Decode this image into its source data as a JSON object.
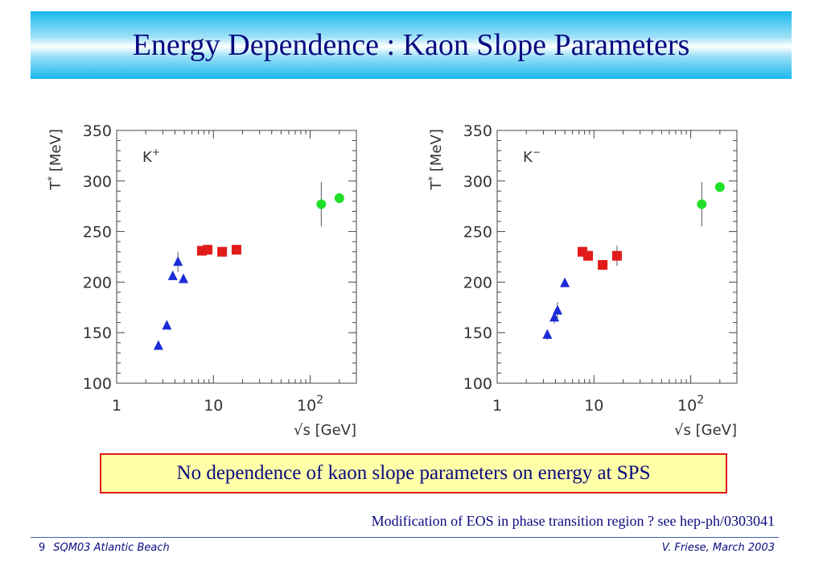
{
  "slide": {
    "title": "Energy Dependence : Kaon Slope Parameters",
    "note": "No dependence of kaon slope parameters on energy at SPS",
    "remark": "Modification of EOS in phase transition region ? see hep-ph/0303041",
    "footer_number": "9",
    "footer_left": "SQM03 Atlantic Beach",
    "footer_right": "V. Friese, March 2003"
  },
  "chart_data": [
    {
      "type": "scatter",
      "panel_label": "K",
      "panel_sup": "+",
      "xlabel": "√s [GeV]",
      "ylabel": "T",
      "ylabel_sup": "*",
      "ylabel_unit": " [MeV]",
      "xscale": "log",
      "xlim": [
        1,
        300
      ],
      "ylim": [
        100,
        350
      ],
      "yticks": [
        100,
        150,
        200,
        250,
        300,
        350
      ],
      "xtick_labels": [
        {
          "x": 1,
          "label": "1"
        },
        {
          "x": 10,
          "label": "10"
        },
        {
          "x": 100,
          "label": "10",
          "sup": "2"
        }
      ],
      "series": [
        {
          "marker": "triangle",
          "color": "#1a2bd6",
          "points": [
            {
              "x": 2.7,
              "y": 137
            },
            {
              "x": 3.3,
              "y": 157
            },
            {
              "x": 3.8,
              "y": 206
            },
            {
              "x": 4.3,
              "y": 220,
              "err": 10
            },
            {
              "x": 4.9,
              "y": 203
            }
          ]
        },
        {
          "marker": "square",
          "color": "#e21b1b",
          "points": [
            {
              "x": 7.6,
              "y": 231,
              "err": 4
            },
            {
              "x": 8.7,
              "y": 232,
              "err": 4
            },
            {
              "x": 12.3,
              "y": 230,
              "err": 5
            },
            {
              "x": 17.3,
              "y": 232,
              "err": 4
            }
          ]
        },
        {
          "marker": "circle",
          "color": "#22e02a",
          "points": [
            {
              "x": 130,
              "y": 277,
              "err": 22
            },
            {
              "x": 200,
              "y": 283,
              "err": 5
            }
          ]
        }
      ]
    },
    {
      "type": "scatter",
      "panel_label": "K",
      "panel_sup": "−",
      "xlabel": "√s [GeV]",
      "ylabel": "T",
      "ylabel_sup": "*",
      "ylabel_unit": " [MeV]",
      "xscale": "log",
      "xlim": [
        1,
        300
      ],
      "ylim": [
        100,
        350
      ],
      "yticks": [
        100,
        150,
        200,
        250,
        300,
        350
      ],
      "xtick_labels": [
        {
          "x": 1,
          "label": "1"
        },
        {
          "x": 10,
          "label": "10"
        },
        {
          "x": 100,
          "label": "10",
          "sup": "2"
        }
      ],
      "series": [
        {
          "marker": "triangle",
          "color": "#1a2bd6",
          "points": [
            {
              "x": 3.3,
              "y": 148,
              "err": 5
            },
            {
              "x": 3.9,
              "y": 165,
              "err": 6
            },
            {
              "x": 4.2,
              "y": 172,
              "err": 8
            },
            {
              "x": 5.0,
              "y": 199
            }
          ]
        },
        {
          "marker": "square",
          "color": "#e21b1b",
          "points": [
            {
              "x": 7.6,
              "y": 230,
              "err": 5
            },
            {
              "x": 8.7,
              "y": 226,
              "err": 5
            },
            {
              "x": 12.3,
              "y": 217,
              "err": 5
            },
            {
              "x": 17.3,
              "y": 226,
              "err": 10
            }
          ]
        },
        {
          "marker": "circle",
          "color": "#22e02a",
          "points": [
            {
              "x": 130,
              "y": 277,
              "err": 22
            },
            {
              "x": 200,
              "y": 294,
              "err": 5
            }
          ]
        }
      ]
    }
  ]
}
